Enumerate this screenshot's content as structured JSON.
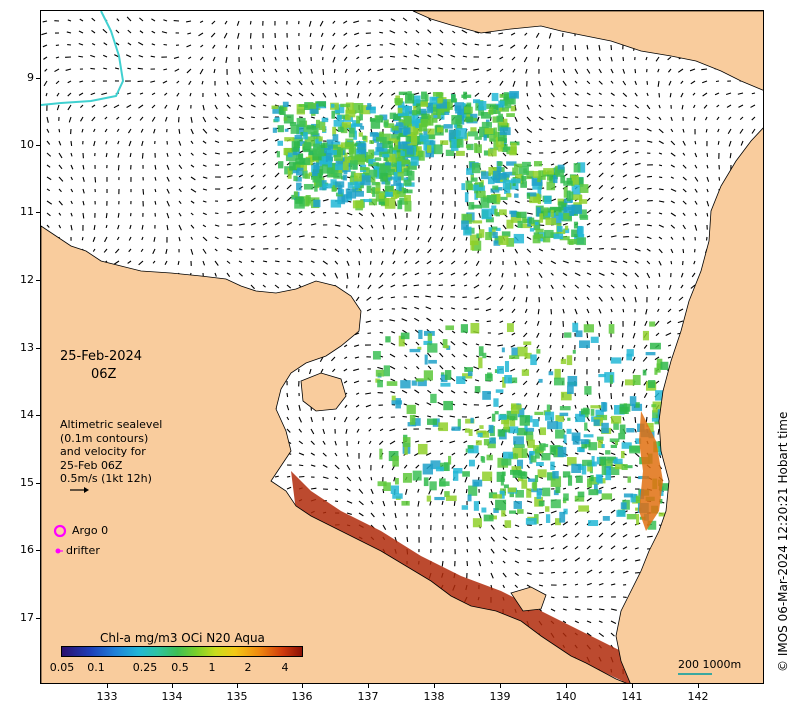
{
  "map": {
    "date_label": "25-Feb-2024",
    "time_label": "06Z",
    "legend_lines": [
      "Altimetric sealevel",
      "(0.1m contours)",
      "and velocity for",
      "25-Feb 06Z",
      "0.5m/s (1kt 12h)"
    ],
    "argo_label": "Argo 0",
    "drifter_label": "drifter",
    "colorbar_title": "Chl-a mg/m3 OCi N20 Aqua",
    "colorbar_ticks": [
      "0.05",
      "0.1",
      "0.25",
      "0.5",
      "1",
      "2",
      "4"
    ],
    "scale_label": "200  1000m",
    "credit": "© IMOS 06-Mar-2024 12:20:21 Hobart time",
    "lat_ticks": [
      "9",
      "10",
      "11",
      "12",
      "13",
      "14",
      "15",
      "16",
      "17"
    ],
    "lon_ticks": [
      "133",
      "134",
      "135",
      "136",
      "137",
      "138",
      "139",
      "140",
      "141",
      "142"
    ],
    "colors": {
      "land": "#f9cc9d",
      "argo": "#ff00ff",
      "drifter": "#ff00ff",
      "isobath": "#40d0d0"
    }
  }
}
